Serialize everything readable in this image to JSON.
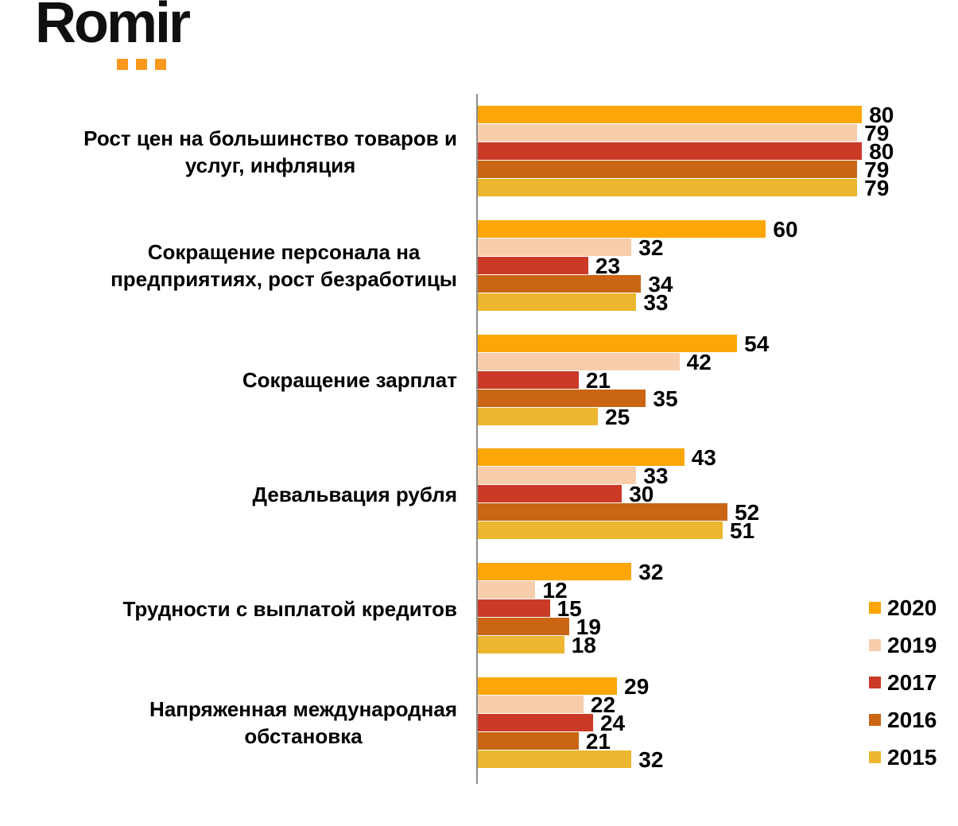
{
  "logo": {
    "text": "Romir",
    "dots_color": "#F8991D",
    "dots_count": 3
  },
  "chart_data": {
    "type": "bar",
    "orientation": "horizontal",
    "title": "",
    "xlabel": "",
    "ylabel": "",
    "xlim": [
      0,
      100
    ],
    "grid": false,
    "legend_position": "right",
    "value_labels": true,
    "axis_color": "#8c8c8c",
    "categories": [
      "Рост цен на большинство товаров и\nуслуг, инфляция",
      "Сокращение персонала на\nпредприятиях, рост безработицы",
      "Сокращение зарплат",
      "Девальвация рубля",
      "Трудности с выплатой кредитов",
      "Напряженная международная\nобстановка"
    ],
    "series": [
      {
        "name": "2020",
        "color": "#FCA608",
        "values": [
          80,
          60,
          54,
          43,
          32,
          29
        ]
      },
      {
        "name": "2019",
        "color": "#F8CDAC",
        "values": [
          79,
          32,
          42,
          33,
          12,
          22
        ]
      },
      {
        "name": "2017",
        "color": "#CA3A27",
        "values": [
          80,
          23,
          21,
          30,
          15,
          24
        ]
      },
      {
        "name": "2016",
        "color": "#C96513",
        "values": [
          79,
          34,
          35,
          52,
          19,
          21
        ]
      },
      {
        "name": "2015",
        "color": "#ECB62E",
        "values": [
          79,
          33,
          25,
          51,
          18,
          32
        ]
      }
    ]
  }
}
